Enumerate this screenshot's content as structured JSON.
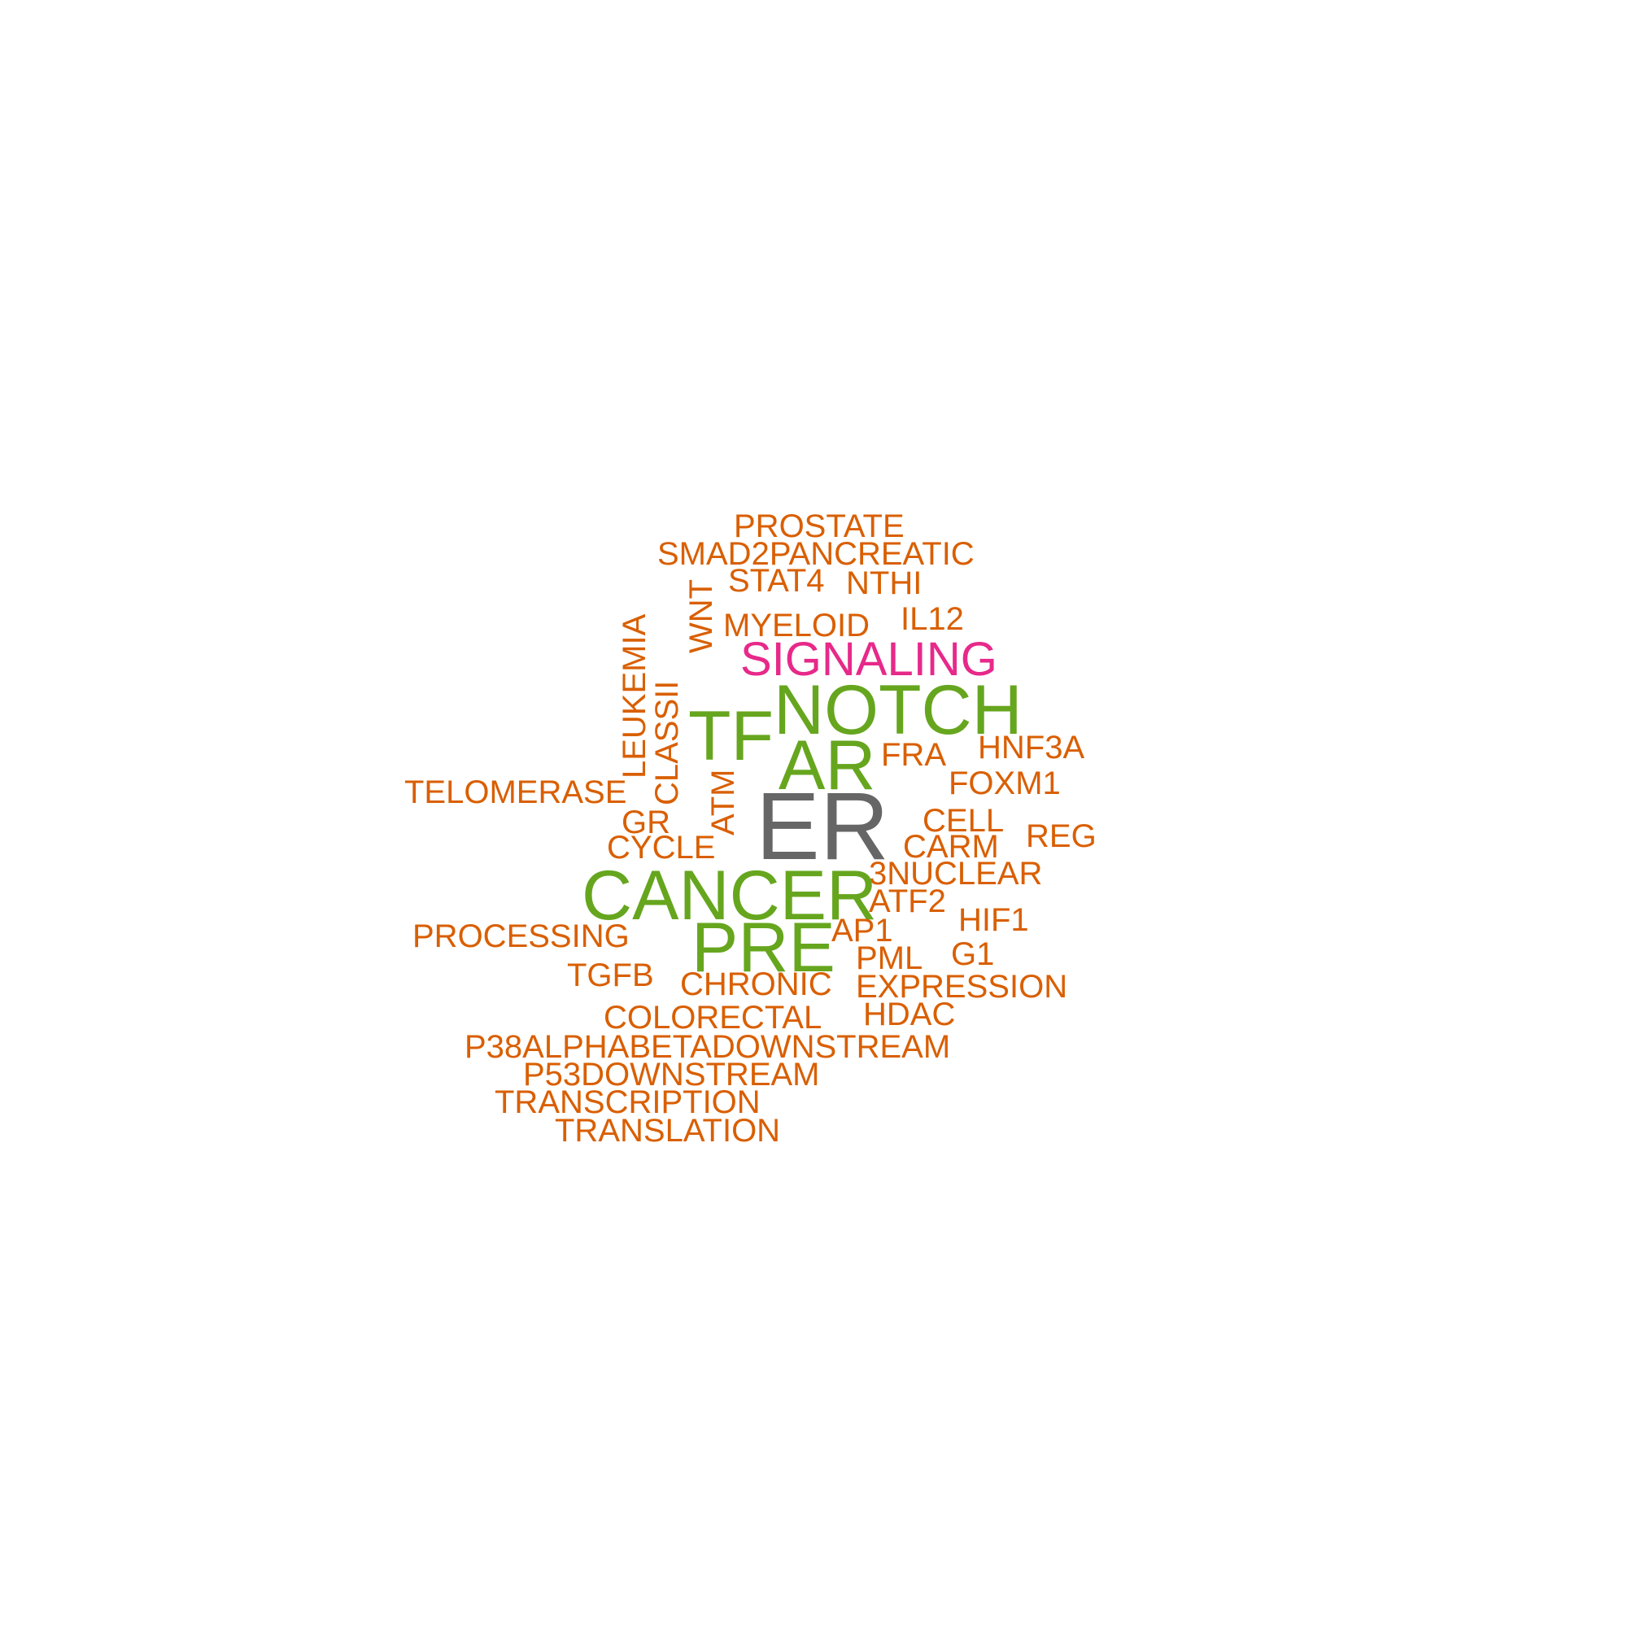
{
  "colors": {
    "small": "#d95f02",
    "medium": "#e7298a",
    "large": "#66a61e",
    "largest": "#666666",
    "background": "#ffffff"
  },
  "words": {
    "prostate": "PROSTATE",
    "smad2pancreatic": "SMAD2PANCREATIC",
    "stat4": "STAT4",
    "nthi": "NTHI",
    "wnt": "WNT",
    "myeloid": "MYELOID",
    "il12": "IL12",
    "leukemia": "LEUKEMIA",
    "signaling": "SIGNALING",
    "classii": "CLASSII",
    "notch": "NOTCH",
    "tf": "TF",
    "ar": "AR",
    "fra": "FRA",
    "hnf3a": "HNF3A",
    "foxm1": "FOXM1",
    "telomerase": "TELOMERASE",
    "atm": "ATM",
    "er": "ER",
    "gr": "GR",
    "cell": "CELL",
    "reg": "REG",
    "cycle": "CYCLE",
    "carm": "CARM",
    "3nuclear": "3NUCLEAR",
    "cancer": "CANCER",
    "atf2": "ATF2",
    "hif1": "HIF1",
    "processing": "PROCESSING",
    "ap1": "AP1",
    "pre": "PRE",
    "g1": "G1",
    "pml": "PML",
    "tgfb": "TGFB",
    "chronic": "CHRONIC",
    "expression": "EXPRESSION",
    "hdac": "HDAC",
    "colorectal": "COLORECTAL",
    "p38": "P38ALPHABETADOWNSTREAM",
    "p53": "P53DOWNSTREAM",
    "transcription": "TRANSCRIPTION",
    "translation": "TRANSLATION"
  }
}
